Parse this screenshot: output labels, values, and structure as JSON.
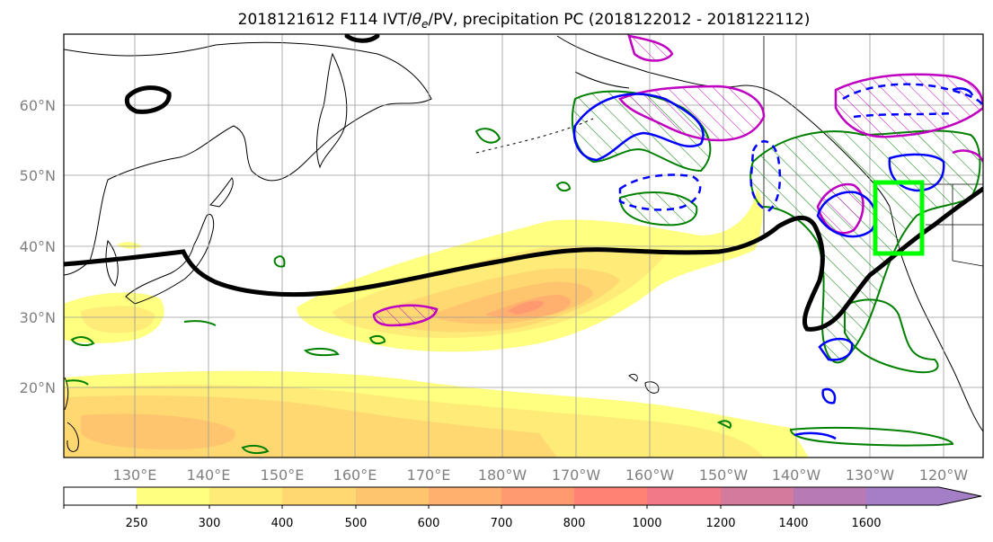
{
  "title": {
    "prefix": "2018121612 F114 IVT/",
    "theta": "θ",
    "theta_sub": "e",
    "suffix": "/PV, precipitation PC (2018122012 - 2018122112)"
  },
  "map": {
    "lon_range": [
      120,
      245
    ],
    "lat_range": [
      10,
      70
    ],
    "lat_ticks": [
      "20°N",
      "30°N",
      "40°N",
      "50°N",
      "60°N"
    ],
    "lon_ticks": [
      "130°E",
      "140°E",
      "150°E",
      "160°E",
      "170°E",
      "180°W",
      "170°W",
      "160°W",
      "150°W",
      "140°W",
      "130°W",
      "120°W"
    ],
    "grid": true
  },
  "colorbar": {
    "labels": [
      "250",
      "300",
      "400",
      "500",
      "600",
      "700",
      "800",
      "1000",
      "1200",
      "1400",
      "1600"
    ],
    "colors": [
      "#ffff80",
      "#ffeb78",
      "#ffd872",
      "#ffc46e",
      "#ffb06e",
      "#ff9a70",
      "#ff8275",
      "#f07a85",
      "#d47a9c",
      "#b87ab4",
      "#a47ec6"
    ],
    "extend": "max"
  },
  "legend_colors": {
    "theta_e": "#000000",
    "pv_magenta": "#c000c0",
    "pv_blue": "#0000ff",
    "precip_green": "#008000",
    "target_box": "#00ff00"
  }
}
